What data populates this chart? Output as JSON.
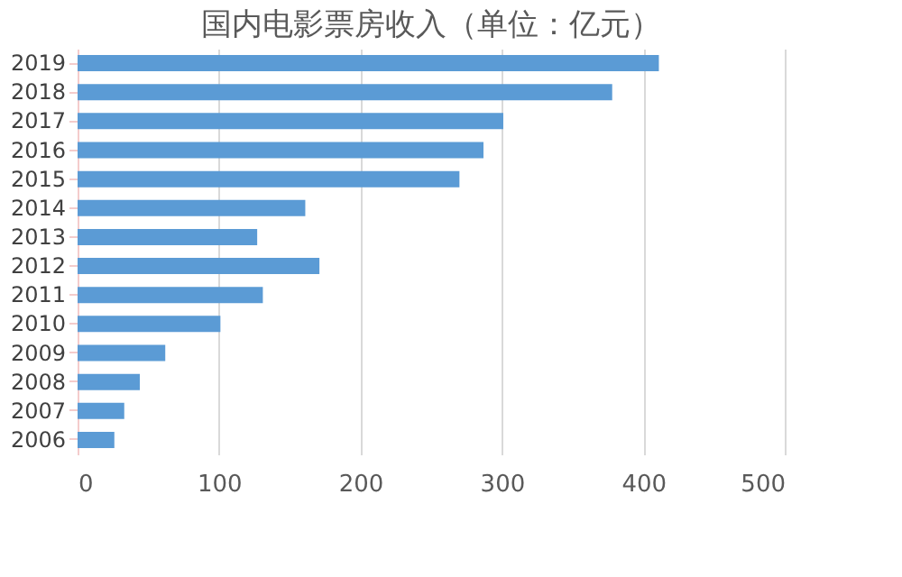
{
  "chart_data": {
    "type": "bar",
    "orientation": "horizontal",
    "title": "国内电影票房收入（单位：亿元）",
    "categories": [
      "2019",
      "2018",
      "2017",
      "2016",
      "2015",
      "2014",
      "2013",
      "2012",
      "2011",
      "2010",
      "2009",
      "2008",
      "2007",
      "2006"
    ],
    "values": [
      411,
      378,
      301,
      287,
      270,
      161,
      127,
      171,
      131,
      101,
      62,
      44,
      33,
      26
    ],
    "color": "#5b9bd5",
    "xlim": [
      0,
      500
    ],
    "xticks": [
      0,
      100,
      200,
      300,
      400,
      500
    ],
    "grid": "x"
  }
}
